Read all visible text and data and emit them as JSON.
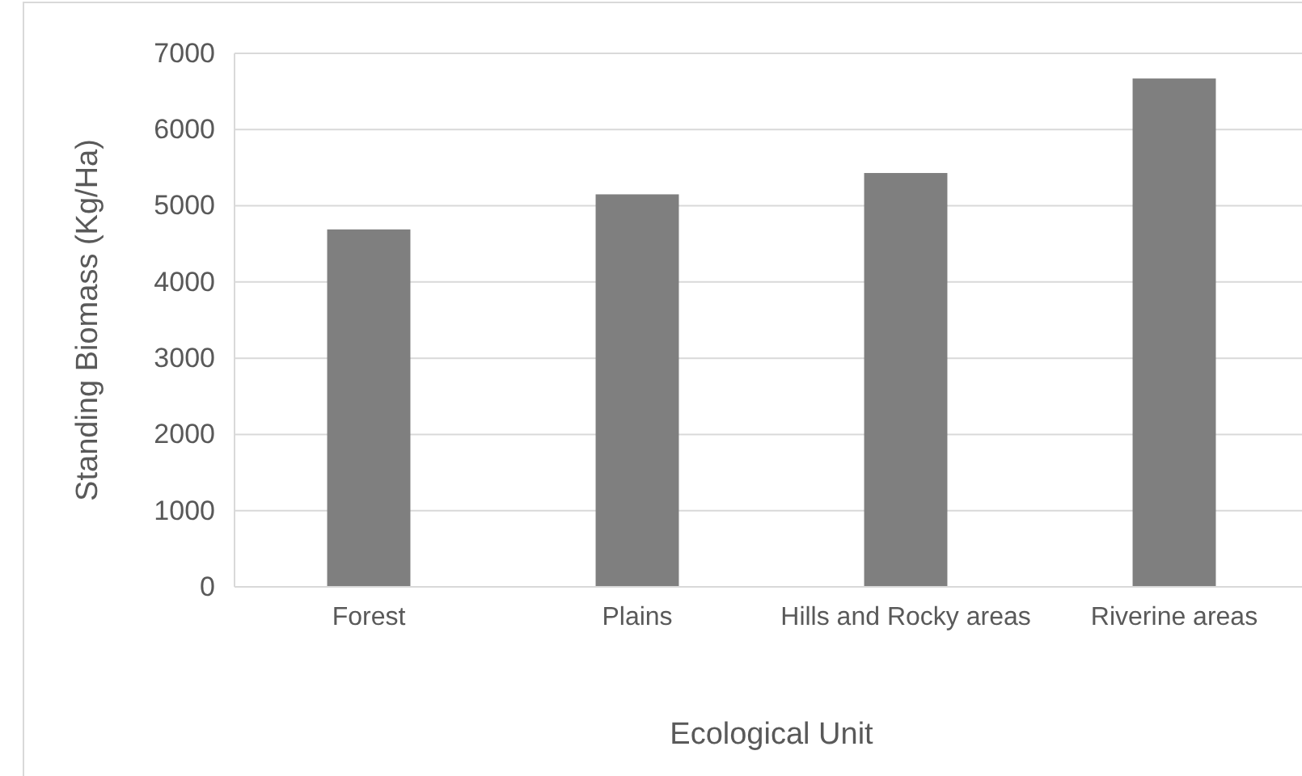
{
  "chart_data": {
    "type": "bar",
    "xlabel": "Ecological Unit",
    "ylabel": "Standing Biomass (Kg/Ha)",
    "categories": [
      "Forest",
      "Plains",
      "Hills and Rocky areas",
      "Riverine areas"
    ],
    "values": [
      4690,
      5150,
      5430,
      6670
    ],
    "color": "#7f7f7f",
    "ylim": [
      0,
      7000
    ],
    "yticks": [
      0,
      1000,
      2000,
      3000,
      4000,
      5000,
      6000,
      7000
    ],
    "grid": "y"
  }
}
